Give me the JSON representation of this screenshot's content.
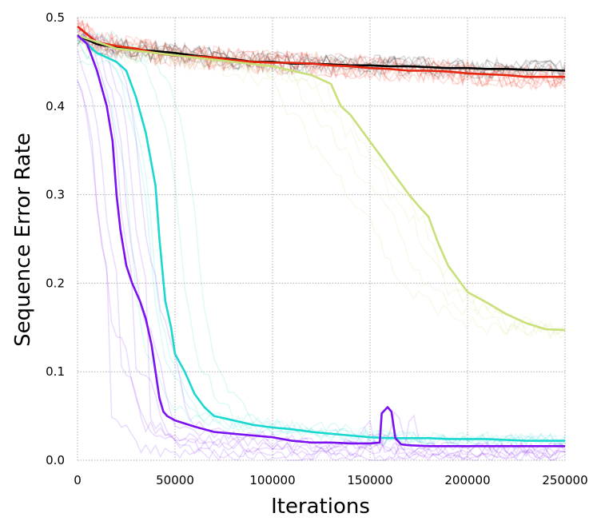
{
  "chart_data": {
    "type": "line",
    "xlabel": "Iterations",
    "ylabel": "Sequence Error Rate",
    "xlim": [
      0,
      250000
    ],
    "ylim": [
      0.0,
      0.5
    ],
    "xticks": [
      0,
      50000,
      100000,
      150000,
      200000,
      250000
    ],
    "xtick_labels": [
      "0",
      "50000",
      "100000",
      "150000",
      "200000",
      "250000"
    ],
    "yticks": [
      0.0,
      0.1,
      0.2,
      0.3,
      0.4,
      0.5
    ],
    "ytick_labels": [
      "0.0",
      "0.1",
      "0.2",
      "0.3",
      "0.4",
      "0.5"
    ],
    "grid": true,
    "grid_style": "dotted",
    "series": [
      {
        "color": "#000000",
        "x": [
          0,
          10000,
          20000,
          30000,
          40000,
          50000,
          60000,
          70000,
          80000,
          90000,
          100000,
          110000,
          120000,
          130000,
          140000,
          150000,
          160000,
          170000,
          180000,
          190000,
          200000,
          210000,
          220000,
          230000,
          240000,
          250000
        ],
        "values": [
          0.48,
          0.47,
          0.466,
          0.464,
          0.462,
          0.46,
          0.457,
          0.455,
          0.453,
          0.45,
          0.45,
          0.448,
          0.448,
          0.447,
          0.446,
          0.446,
          0.445,
          0.445,
          0.444,
          0.443,
          0.443,
          0.442,
          0.442,
          0.441,
          0.441,
          0.44
        ]
      },
      {
        "color": "#e8250e",
        "x": [
          0,
          10000,
          20000,
          30000,
          40000,
          50000,
          60000,
          70000,
          80000,
          90000,
          100000,
          110000,
          120000,
          130000,
          140000,
          150000,
          160000,
          170000,
          180000,
          190000,
          200000,
          210000,
          220000,
          230000,
          240000,
          250000
        ],
        "values": [
          0.49,
          0.472,
          0.468,
          0.465,
          0.46,
          0.457,
          0.456,
          0.455,
          0.452,
          0.45,
          0.449,
          0.449,
          0.448,
          0.446,
          0.445,
          0.443,
          0.442,
          0.44,
          0.44,
          0.439,
          0.437,
          0.436,
          0.435,
          0.433,
          0.433,
          0.433
        ]
      },
      {
        "color": "#c8e07a",
        "x": [
          0,
          20000,
          40000,
          60000,
          80000,
          100000,
          110000,
          120000,
          130000,
          135000,
          140000,
          145000,
          150000,
          155000,
          160000,
          165000,
          170000,
          175000,
          180000,
          185000,
          190000,
          195000,
          200000,
          210000,
          220000,
          230000,
          240000,
          250000
        ],
        "values": [
          0.48,
          0.465,
          0.46,
          0.455,
          0.45,
          0.445,
          0.44,
          0.435,
          0.425,
          0.4,
          0.39,
          0.375,
          0.36,
          0.345,
          0.33,
          0.315,
          0.3,
          0.287,
          0.275,
          0.245,
          0.22,
          0.205,
          0.19,
          0.178,
          0.165,
          0.155,
          0.148,
          0.147
        ]
      },
      {
        "color": "#1ad8d0",
        "x": [
          0,
          10000,
          20000,
          25000,
          30000,
          35000,
          40000,
          42000,
          45000,
          48000,
          50000,
          55000,
          60000,
          65000,
          70000,
          80000,
          90000,
          100000,
          110000,
          120000,
          130000,
          140000,
          150000,
          160000,
          170000,
          180000,
          190000,
          200000,
          210000,
          220000,
          230000,
          240000,
          250000
        ],
        "values": [
          0.48,
          0.46,
          0.45,
          0.44,
          0.41,
          0.37,
          0.31,
          0.25,
          0.18,
          0.15,
          0.12,
          0.1,
          0.075,
          0.06,
          0.05,
          0.045,
          0.04,
          0.037,
          0.035,
          0.032,
          0.03,
          0.028,
          0.026,
          0.025,
          0.025,
          0.025,
          0.024,
          0.024,
          0.024,
          0.023,
          0.022,
          0.022,
          0.022
        ]
      },
      {
        "color": "#7b10f0",
        "x": [
          0,
          5000,
          10000,
          15000,
          18000,
          20000,
          22000,
          25000,
          28000,
          32000,
          35000,
          38000,
          40000,
          42000,
          44000,
          46000,
          50000,
          60000,
          70000,
          80000,
          90000,
          100000,
          110000,
          120000,
          130000,
          140000,
          150000,
          155000,
          156000,
          159000,
          161000,
          163000,
          166000,
          170000,
          180000,
          190000,
          200000,
          210000,
          220000,
          230000,
          240000,
          250000
        ],
        "values": [
          0.48,
          0.47,
          0.44,
          0.4,
          0.36,
          0.3,
          0.26,
          0.22,
          0.2,
          0.18,
          0.16,
          0.13,
          0.1,
          0.07,
          0.055,
          0.05,
          0.045,
          0.038,
          0.032,
          0.03,
          0.028,
          0.026,
          0.022,
          0.02,
          0.02,
          0.019,
          0.019,
          0.02,
          0.053,
          0.06,
          0.055,
          0.025,
          0.018,
          0.017,
          0.016,
          0.016,
          0.016,
          0.016,
          0.016,
          0.016,
          0.016,
          0.016
        ]
      }
    ]
  }
}
